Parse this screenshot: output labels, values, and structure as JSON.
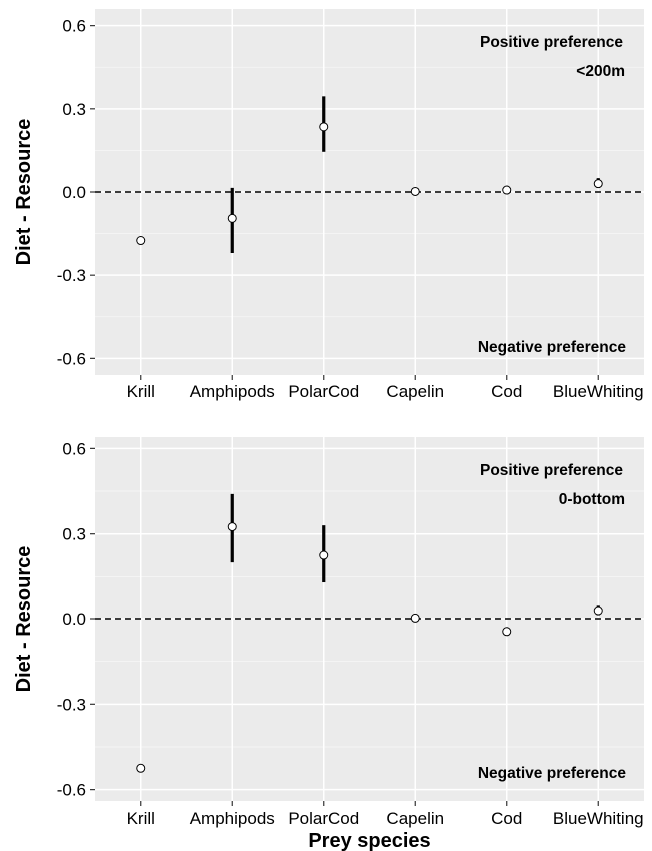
{
  "chart_data": [
    {
      "type": "scatter",
      "ylabel": "Diet - Resource",
      "xlabel": "",
      "categories": [
        "Krill",
        "Amphipods",
        "PolarCod",
        "Capelin",
        "Cod",
        "BlueWhiting"
      ],
      "ylim": [
        -0.66,
        0.66
      ],
      "yticks": [
        -0.6,
        -0.3,
        0.0,
        0.3,
        0.6
      ],
      "ytick_labels": [
        "-0.6",
        "-0.3",
        "0.0",
        "0.3",
        "0.6"
      ],
      "reference_line": 0,
      "annotations": {
        "top": "Positive preference",
        "depth": "<200m",
        "bottom": "Negative preference"
      },
      "points": [
        {
          "category": "Krill",
          "value": -0.175,
          "low": null,
          "high": null
        },
        {
          "category": "Amphipods",
          "value": -0.095,
          "low": -0.22,
          "high": 0.015
        },
        {
          "category": "PolarCod",
          "value": 0.235,
          "low": 0.145,
          "high": 0.345
        },
        {
          "category": "Capelin",
          "value": 0.002,
          "low": null,
          "high": null
        },
        {
          "category": "Cod",
          "value": 0.007,
          "low": null,
          "high": null
        },
        {
          "category": "BlueWhiting",
          "value": 0.03,
          "low": 0.015,
          "high": 0.05
        }
      ],
      "grid": true,
      "background": "#ebebeb"
    },
    {
      "type": "scatter",
      "ylabel": "Diet - Resource",
      "xlabel": "Prey species",
      "categories": [
        "Krill",
        "Amphipods",
        "PolarCod",
        "Capelin",
        "Cod",
        "BlueWhiting"
      ],
      "ylim": [
        -0.64,
        0.64
      ],
      "yticks": [
        -0.6,
        -0.3,
        0.0,
        0.3,
        0.6
      ],
      "ytick_labels": [
        "-0.6",
        "-0.3",
        "0.0",
        "0.3",
        "0.6"
      ],
      "reference_line": 0,
      "annotations": {
        "top": "Positive preference",
        "depth": "0-bottom",
        "bottom": "Negative preference"
      },
      "points": [
        {
          "category": "Krill",
          "value": -0.525,
          "low": null,
          "high": null
        },
        {
          "category": "Amphipods",
          "value": 0.325,
          "low": 0.2,
          "high": 0.44
        },
        {
          "category": "PolarCod",
          "value": 0.225,
          "low": 0.13,
          "high": 0.33
        },
        {
          "category": "Capelin",
          "value": 0.002,
          "low": null,
          "high": null
        },
        {
          "category": "Cod",
          "value": -0.045,
          "low": null,
          "high": null
        },
        {
          "category": "BlueWhiting",
          "value": 0.028,
          "low": 0.012,
          "high": 0.048
        }
      ],
      "grid": true,
      "background": "#ebebeb"
    }
  ]
}
